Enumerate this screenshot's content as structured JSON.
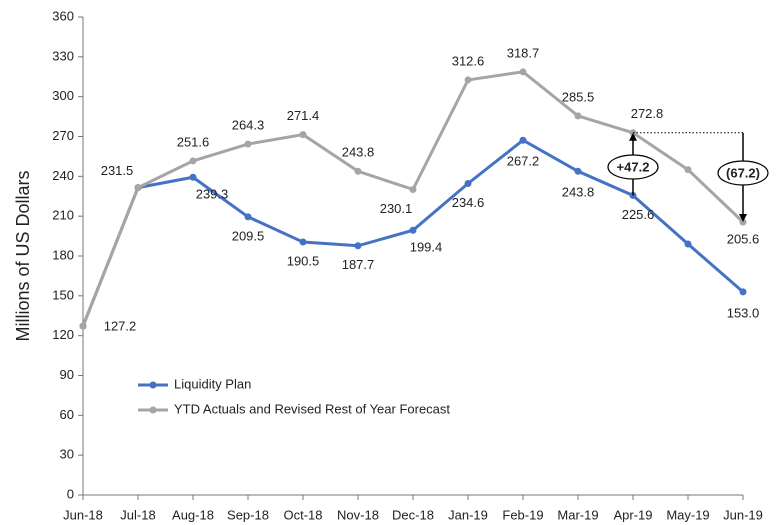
{
  "chart_data": {
    "type": "line",
    "y_label": "Millions of US Dollars",
    "categories": [
      "Jun-18",
      "Jul-18",
      "Aug-18",
      "Sep-18",
      "Oct-18",
      "Nov-18",
      "Dec-18",
      "Jan-19",
      "Feb-19",
      "Mar-19",
      "Apr-19",
      "May-19",
      "Jun-19"
    ],
    "series": [
      {
        "name": "Liquidity Plan",
        "color": "#4472c4",
        "values": [
          127.2,
          231.5,
          239.3,
          209.5,
          190.5,
          187.7,
          199.4,
          234.6,
          267.2,
          243.8,
          225.6,
          189,
          153.0
        ],
        "value_labels": [
          "127.2",
          null,
          "239.3",
          "209.5",
          "190.5",
          "187.7",
          "199.4",
          "234.6",
          "267.2",
          "243.8",
          "225.6",
          null,
          "153.0"
        ]
      },
      {
        "name": "YTD Actuals and Revised Rest of Year Forecast",
        "color": "#a5a5a5",
        "values": [
          127.2,
          231.5,
          251.6,
          264.3,
          271.4,
          243.8,
          230.1,
          312.6,
          318.7,
          285.5,
          272.8,
          245,
          205.6
        ],
        "value_labels": [
          null,
          "231.5",
          "251.6",
          "264.3",
          "271.4",
          "243.8",
          "230.1",
          "312.6",
          "318.7",
          "285.5",
          "272.8",
          null,
          "205.6"
        ]
      }
    ],
    "annotations": [
      "+47.2",
      "(67.2)"
    ],
    "ylim": [
      0,
      360
    ],
    "yticks": [
      0,
      30,
      60,
      90,
      120,
      150,
      180,
      210,
      240,
      270,
      300,
      330,
      360
    ],
    "legend": "lower left"
  }
}
